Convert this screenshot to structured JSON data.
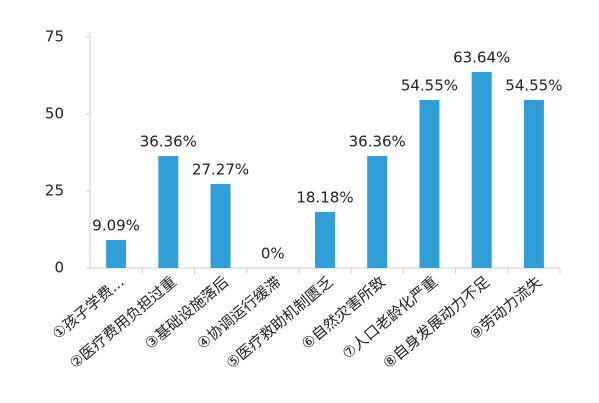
{
  "chart_data": {
    "type": "bar",
    "categories": [
      "①孩子学费...",
      "②医疗费用负担过重",
      "③基础设施落后",
      "④协调运行缓滞",
      "⑤医疗救助机制匮乏",
      "⑥自然灾害所致",
      "⑦人口老龄化严重",
      "⑧自身发展动力不足",
      "⑨劳动力流失"
    ],
    "values": [
      9.09,
      36.36,
      27.27,
      0,
      18.18,
      36.36,
      54.55,
      63.64,
      54.55
    ],
    "value_labels": [
      "9.09%",
      "36.36%",
      "27.27%",
      "0%",
      "18.18%",
      "36.36%",
      "54.55%",
      "63.64%",
      "54.55%"
    ],
    "color": "#2e9fd9",
    "ylim": [
      0,
      75
    ],
    "yticks": [
      0,
      25,
      50,
      75
    ],
    "grid": false
  }
}
